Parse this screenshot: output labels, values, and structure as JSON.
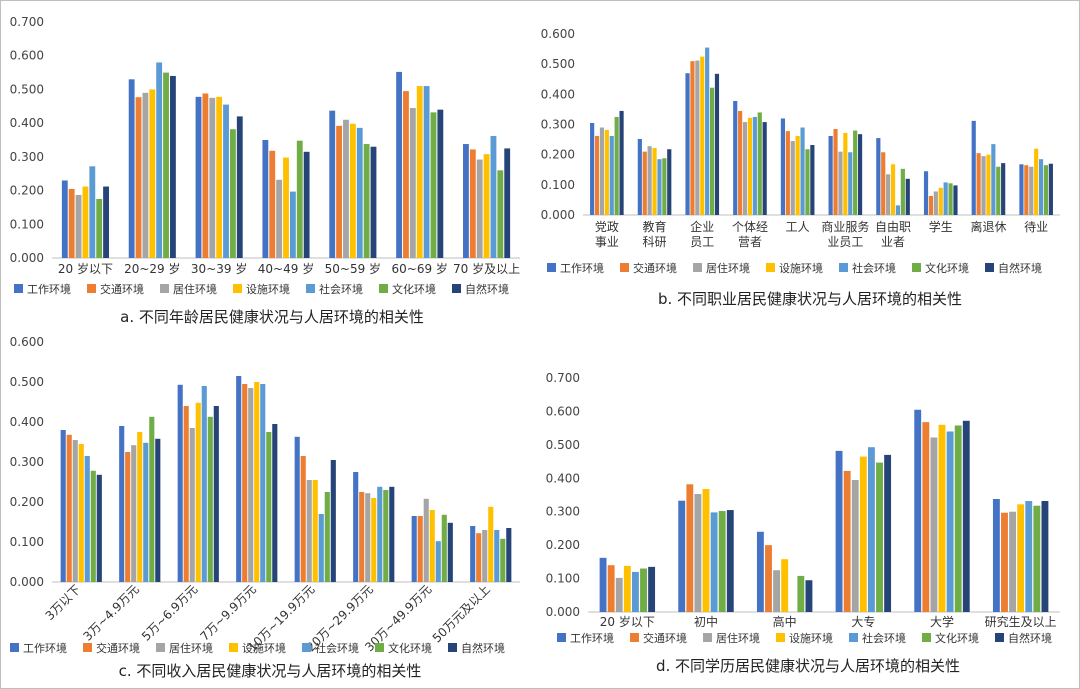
{
  "series_names": [
    "工作环境",
    "交通环境",
    "居住环境",
    "设施环境",
    "社会环境",
    "文化环境",
    "自然环境"
  ],
  "series_colors": [
    "#4472c4",
    "#ed7d31",
    "#a5a5a5",
    "#ffc000",
    "#5b9bd5",
    "#70ad47",
    "#264478"
  ],
  "chart_data": [
    {
      "type": "bar",
      "title": "a. 不同年龄居民健康状况与人居环境的相关性",
      "categories": [
        "20 岁以下",
        "20~29 岁",
        "30~39 岁",
        "40~49 岁",
        "50~59 岁",
        "60~69 岁",
        "70 岁及以上"
      ],
      "ylim": [
        0,
        0.7
      ],
      "yticks": [
        "0.000",
        "0.100",
        "0.200",
        "0.300",
        "0.400",
        "0.500",
        "0.600",
        "0.700"
      ],
      "grid": false,
      "legend": "bottom",
      "series": [
        {
          "name": "工作环境",
          "values": [
            0.23,
            0.53,
            0.478,
            0.35,
            0.437,
            0.552,
            0.338
          ]
        },
        {
          "name": "交通环境",
          "values": [
            0.205,
            0.477,
            0.488,
            0.318,
            0.392,
            0.495,
            0.322
          ]
        },
        {
          "name": "居住环境",
          "values": [
            0.187,
            0.49,
            0.475,
            0.232,
            0.41,
            0.445,
            0.292
          ]
        },
        {
          "name": "设施环境",
          "values": [
            0.212,
            0.5,
            0.478,
            0.298,
            0.398,
            0.51,
            0.308
          ]
        },
        {
          "name": "社会环境",
          "values": [
            0.272,
            0.58,
            0.455,
            0.197,
            0.386,
            0.51,
            0.362
          ]
        },
        {
          "name": "文化环境",
          "values": [
            0.175,
            0.55,
            0.382,
            0.348,
            0.338,
            0.432,
            0.26
          ]
        },
        {
          "name": "自然环境",
          "values": [
            0.212,
            0.54,
            0.42,
            0.315,
            0.33,
            0.44,
            0.325
          ]
        }
      ]
    },
    {
      "type": "bar",
      "title": "b. 不同职业居民健康状况与人居环境的相关性",
      "categories": [
        [
          "党政",
          "事业"
        ],
        [
          "教育",
          "科研"
        ],
        [
          "企业",
          "员工"
        ],
        [
          "个体经",
          "营者"
        ],
        [
          "工人"
        ],
        [
          "商业服务",
          "业员工"
        ],
        [
          "自由职",
          "业者"
        ],
        [
          "学生"
        ],
        [
          "离退休"
        ],
        [
          "待业"
        ]
      ],
      "ylim": [
        0,
        0.6
      ],
      "yticks": [
        "0.000",
        "0.100",
        "0.200",
        "0.300",
        "0.400",
        "0.500",
        "0.600"
      ],
      "grid": false,
      "legend": "bottom",
      "series": [
        {
          "name": "工作环境",
          "values": [
            0.305,
            0.252,
            0.47,
            0.378,
            0.32,
            0.262,
            0.255,
            0.145,
            0.312,
            0.168
          ]
        },
        {
          "name": "交通环境",
          "values": [
            0.262,
            0.21,
            0.51,
            0.345,
            0.278,
            0.285,
            0.208,
            0.063,
            0.205,
            0.165
          ]
        },
        {
          "name": "居住环境",
          "values": [
            0.29,
            0.228,
            0.512,
            0.308,
            0.245,
            0.21,
            0.135,
            0.078,
            0.195,
            0.16
          ]
        },
        {
          "name": "设施环境",
          "values": [
            0.282,
            0.222,
            0.525,
            0.322,
            0.262,
            0.272,
            0.168,
            0.09,
            0.2,
            0.22
          ]
        },
        {
          "name": "社会环境",
          "values": [
            0.262,
            0.185,
            0.555,
            0.325,
            0.29,
            0.208,
            0.032,
            0.108,
            0.235,
            0.185
          ]
        },
        {
          "name": "文化环境",
          "values": [
            0.325,
            0.188,
            0.422,
            0.34,
            0.218,
            0.28,
            0.153,
            0.105,
            0.16,
            0.165
          ]
        },
        {
          "name": "自然环境",
          "values": [
            0.345,
            0.218,
            0.468,
            0.308,
            0.232,
            0.268,
            0.12,
            0.098,
            0.172,
            0.17
          ]
        }
      ]
    },
    {
      "type": "bar",
      "title": "c. 不同收入居民健康状况与人居环境的相关性",
      "categories": [
        "3万以下",
        "3万~4.9万元",
        "5万~6.9万元",
        "7万~9.9万元",
        "10万~19.9万元",
        "20万~29.9万元",
        "30万~49.9万元",
        "50万元及以上"
      ],
      "ylim": [
        0,
        0.6
      ],
      "yticks": [
        "0.000",
        "0.100",
        "0.200",
        "0.300",
        "0.400",
        "0.500",
        "0.600"
      ],
      "grid": false,
      "legend": "bottom",
      "series": [
        {
          "name": "工作环境",
          "values": [
            0.38,
            0.39,
            0.493,
            0.515,
            0.363,
            0.275,
            0.165,
            0.14
          ]
        },
        {
          "name": "交通环境",
          "values": [
            0.368,
            0.325,
            0.44,
            0.495,
            0.315,
            0.225,
            0.165,
            0.122
          ]
        },
        {
          "name": "居住环境",
          "values": [
            0.355,
            0.342,
            0.385,
            0.485,
            0.255,
            0.222,
            0.208,
            0.13
          ]
        },
        {
          "name": "设施环境",
          "values": [
            0.345,
            0.375,
            0.448,
            0.5,
            0.255,
            0.21,
            0.18,
            0.188
          ]
        },
        {
          "name": "社会环境",
          "values": [
            0.315,
            0.348,
            0.49,
            0.495,
            0.17,
            0.238,
            0.102,
            0.13
          ]
        },
        {
          "name": "文化环境",
          "values": [
            0.278,
            0.413,
            0.413,
            0.375,
            0.225,
            0.23,
            0.168,
            0.108
          ]
        },
        {
          "name": "自然环境",
          "values": [
            0.268,
            0.358,
            0.44,
            0.395,
            0.305,
            0.238,
            0.148,
            0.135
          ]
        }
      ]
    },
    {
      "type": "bar",
      "title": "d. 不同学历居民健康状况与人居环境的相关性",
      "categories": [
        "20 岁以下",
        "初中",
        "高中",
        "大专",
        "大学",
        "研究生及以上"
      ],
      "ylim": [
        0,
        0.7
      ],
      "yticks": [
        "0.000",
        "0.100",
        "0.200",
        "0.300",
        "0.400",
        "0.500",
        "0.600",
        "0.700"
      ],
      "grid": false,
      "legend": "bottom",
      "series": [
        {
          "name": "工作环境",
          "values": [
            0.162,
            0.333,
            0.24,
            0.482,
            0.605,
            0.338
          ]
        },
        {
          "name": "交通环境",
          "values": [
            0.14,
            0.382,
            0.2,
            0.422,
            0.568,
            0.297
          ]
        },
        {
          "name": "居住环境",
          "values": [
            0.102,
            0.353,
            0.125,
            0.395,
            0.522,
            0.3
          ]
        },
        {
          "name": "设施环境",
          "values": [
            0.138,
            0.368,
            0.158,
            0.465,
            0.56,
            0.322
          ]
        },
        {
          "name": "社会环境",
          "values": [
            0.12,
            0.298,
            0.0,
            0.493,
            0.54,
            0.332
          ]
        },
        {
          "name": "文化环境",
          "values": [
            0.13,
            0.302,
            0.108,
            0.447,
            0.558,
            0.318
          ]
        },
        {
          "name": "自然环境",
          "values": [
            0.135,
            0.305,
            0.095,
            0.47,
            0.572,
            0.332
          ]
        }
      ]
    }
  ]
}
